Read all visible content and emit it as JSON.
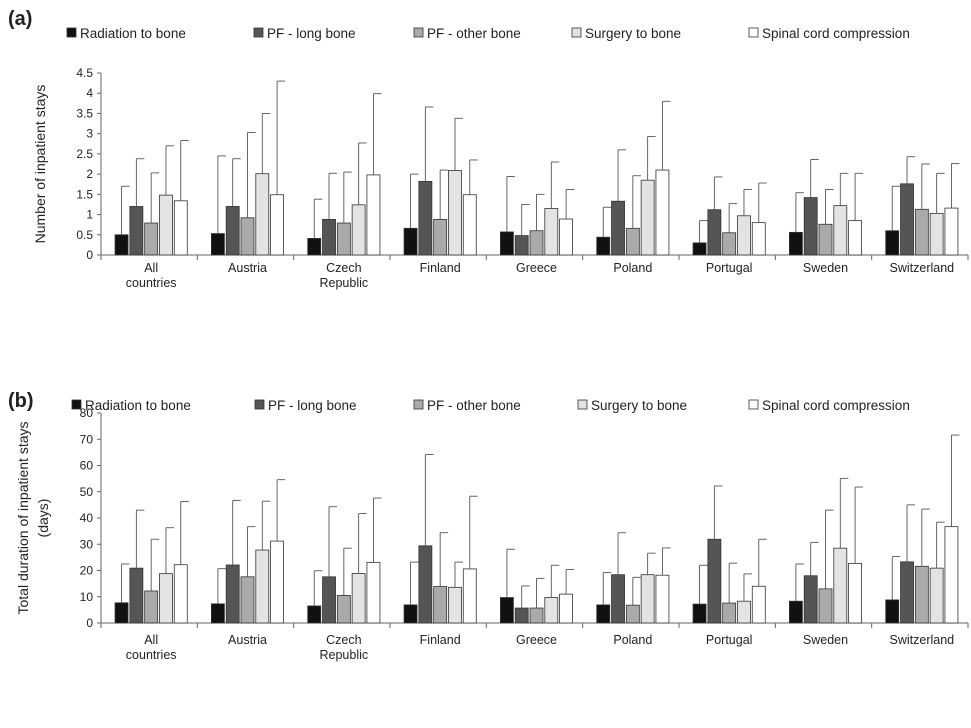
{
  "colors": {
    "series": [
      "#111111",
      "#555555",
      "#aaaaaa",
      "#e3e3e3",
      "#ffffff"
    ],
    "bar_stroke": "#333333",
    "axis": "#666666"
  },
  "categories": [
    [
      "All",
      "countries"
    ],
    [
      "Austria"
    ],
    [
      "Czech",
      "Republic"
    ],
    [
      "Finland"
    ],
    [
      "Greece"
    ],
    [
      "Poland"
    ],
    [
      "Portugal"
    ],
    [
      "Sweden"
    ],
    [
      "Switzerland"
    ]
  ],
  "chart_data": [
    {
      "type": "bar",
      "panel_label": "(a)",
      "ylabel": [
        "Number of inpatient stays"
      ],
      "ylim": [
        0,
        4.5
      ],
      "yticks": [
        "0",
        "0.5",
        "1",
        "1.5",
        "2",
        "2.5",
        "3",
        "3.5",
        "4",
        "4.5"
      ],
      "grid": false,
      "error_bars": true,
      "legend_position": "top",
      "categories": [
        "All countries",
        "Austria",
        "Czech Republic",
        "Finland",
        "Greece",
        "Poland",
        "Portugal",
        "Sweden",
        "Switzerland"
      ],
      "series": [
        {
          "name": "Radiation to bone",
          "values": [
            0.5,
            0.53,
            0.41,
            0.66,
            0.57,
            0.44,
            0.3,
            0.56,
            0.6
          ],
          "error_upper": [
            1.7,
            2.45,
            1.38,
            2.0,
            1.94,
            1.18,
            0.85,
            1.54,
            1.7
          ]
        },
        {
          "name": "PF - long bone",
          "values": [
            1.2,
            1.2,
            0.88,
            1.82,
            0.48,
            1.33,
            1.12,
            1.42,
            1.76
          ],
          "error_upper": [
            2.38,
            2.38,
            2.02,
            3.66,
            1.25,
            2.6,
            1.93,
            2.36,
            2.43
          ]
        },
        {
          "name": "PF - other bone",
          "values": [
            0.79,
            0.92,
            0.79,
            0.88,
            0.6,
            0.66,
            0.55,
            0.76,
            1.13
          ],
          "error_upper": [
            2.03,
            3.03,
            2.05,
            2.1,
            1.5,
            1.96,
            1.27,
            1.62,
            2.25
          ]
        },
        {
          "name": "Surgery to bone",
          "values": [
            1.48,
            2.01,
            1.24,
            2.09,
            1.15,
            1.85,
            0.97,
            1.22,
            1.03
          ],
          "error_upper": [
            2.7,
            3.5,
            2.77,
            3.38,
            2.3,
            2.93,
            1.62,
            2.02,
            2.02
          ]
        },
        {
          "name": "Spinal cord compression",
          "values": [
            1.34,
            1.49,
            1.98,
            1.49,
            0.89,
            2.1,
            0.8,
            0.85,
            1.16
          ],
          "error_upper": [
            2.83,
            4.3,
            3.99,
            2.35,
            1.62,
            3.8,
            1.78,
            2.02,
            2.26
          ]
        }
      ]
    },
    {
      "type": "bar",
      "panel_label": "(b)",
      "ylabel": [
        "Total duration of inpatient stays",
        "(days)"
      ],
      "ylim": [
        0,
        80
      ],
      "yticks": [
        "0",
        "10",
        "20",
        "30",
        "40",
        "50",
        "60",
        "70",
        "80"
      ],
      "grid": false,
      "error_bars": true,
      "legend_position": "top",
      "categories": [
        "All countries",
        "Austria",
        "Czech Republic",
        "Finland",
        "Greece",
        "Poland",
        "Portugal",
        "Sweden",
        "Switzerland"
      ],
      "series": [
        {
          "name": "Radiation to bone",
          "values": [
            7.7,
            7.3,
            6.5,
            6.9,
            9.7,
            6.9,
            7.2,
            8.3,
            8.8
          ],
          "error_upper": [
            22.5,
            20.7,
            19.9,
            23.2,
            28.1,
            19.2,
            22.0,
            22.5,
            25.3
          ]
        },
        {
          "name": "PF - long bone",
          "values": [
            20.9,
            22.1,
            17.6,
            29.4,
            5.7,
            18.4,
            31.9,
            18.0,
            23.3
          ],
          "error_upper": [
            43.0,
            46.7,
            44.3,
            64.2,
            14.1,
            34.4,
            52.2,
            30.7,
            45.0
          ]
        },
        {
          "name": "PF - other bone",
          "values": [
            12.2,
            17.6,
            10.5,
            13.9,
            5.7,
            6.8,
            7.6,
            13.0,
            21.6
          ],
          "error_upper": [
            31.9,
            36.7,
            28.5,
            34.4,
            17.0,
            17.4,
            22.8,
            43.0,
            43.4
          ]
        },
        {
          "name": "Surgery to bone",
          "values": [
            18.8,
            27.8,
            18.9,
            13.6,
            9.7,
            18.4,
            8.3,
            28.5,
            20.9
          ],
          "error_upper": [
            36.3,
            46.4,
            41.7,
            23.2,
            22.0,
            26.6,
            18.7,
            55.1,
            38.4
          ]
        },
        {
          "name": "Spinal cord compression",
          "values": [
            22.2,
            31.2,
            23.1,
            20.6,
            11.0,
            18.2,
            14.0,
            22.7,
            36.7
          ],
          "error_upper": [
            46.3,
            54.6,
            47.6,
            48.3,
            20.4,
            28.6,
            31.9,
            51.8,
            71.6
          ]
        }
      ]
    }
  ]
}
